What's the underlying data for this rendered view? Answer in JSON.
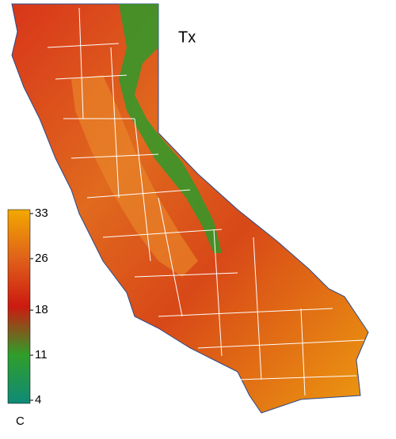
{
  "title": "Tx",
  "legend": {
    "unit": "C",
    "ticks": [
      33,
      26,
      18,
      11,
      4
    ],
    "range": [
      4,
      33
    ],
    "colors": [
      "#0f8a78",
      "#2f9e2a",
      "#cc1a10",
      "#e0621a",
      "#f2a800"
    ]
  }
}
